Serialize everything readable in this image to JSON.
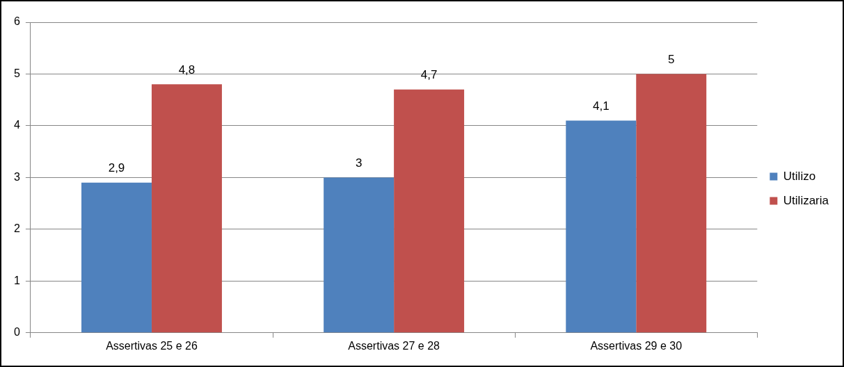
{
  "chart_data": {
    "type": "bar",
    "categories": [
      "Assertivas 25 e 26",
      "Assertivas 27 e 28",
      "Assertivas 29 e 30"
    ],
    "series": [
      {
        "name": "Utilizo",
        "color": "#4f81bd",
        "values": [
          2.9,
          3,
          4.1
        ],
        "value_labels": [
          "2,9",
          "3",
          "4,1"
        ]
      },
      {
        "name": "Utilizaria",
        "color": "#c0504d",
        "values": [
          4.8,
          4.7,
          5
        ],
        "value_labels": [
          "4,8",
          "4,7",
          "5"
        ]
      }
    ],
    "ylim": [
      0,
      6
    ],
    "yticks": [
      0,
      1,
      2,
      3,
      4,
      5,
      6
    ],
    "grid": "y",
    "legend": "right"
  }
}
